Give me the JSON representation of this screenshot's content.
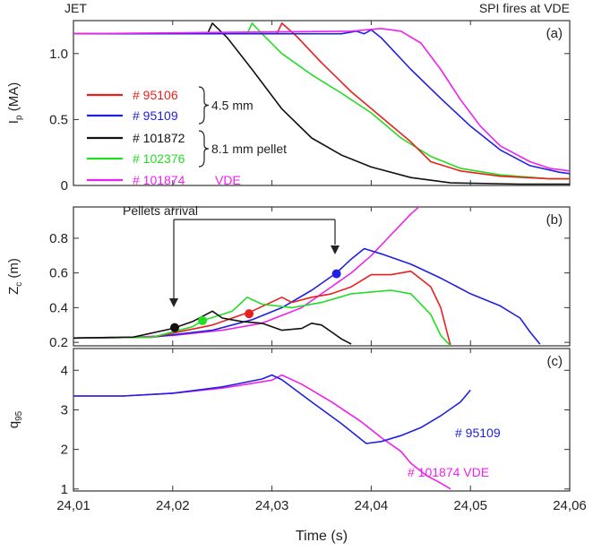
{
  "header": {
    "left": "JET",
    "right": "SPI fires at VDE"
  },
  "xaxis": {
    "label": "Time (s)",
    "min": 24.01,
    "max": 24.06,
    "ticks": [
      "24,01",
      "24,02",
      "24,03",
      "24,04",
      "24,05",
      "24,06"
    ],
    "tick_values": [
      24.01,
      24.02,
      24.03,
      24.04,
      24.05,
      24.06
    ]
  },
  "chart_data": [
    {
      "type": "line",
      "panel_label": "(a)",
      "ylabel_main": "I",
      "ylabel_sub": "p",
      "ylabel_unit": " (MA)",
      "ylim": [
        0,
        1.25
      ],
      "yticks": [
        {
          "v": 0,
          "t": "0"
        },
        {
          "v": 0.5,
          "t": "0.5"
        },
        {
          "v": 1.0,
          "t": "1.0"
        }
      ],
      "legend": [
        {
          "name": "# 95106",
          "color": "#e8211f"
        },
        {
          "name": "# 95109",
          "color": "#2020e0"
        },
        {
          "name": "# 101872",
          "color": "#111111"
        },
        {
          "name": "# 102376",
          "color": "#22dd22"
        },
        {
          "name": "# 101874",
          "color": "#ee22ee",
          "note": "VDE"
        }
      ],
      "legend_braces": [
        {
          "label": "4.5 mm",
          "series": [
            0,
            1
          ]
        },
        {
          "label": "8.1 mm pellet",
          "series": [
            2,
            3
          ]
        }
      ],
      "series": [
        {
          "name": "# 101872",
          "color": "#111111",
          "points": [
            [
              24.01,
              1.15
            ],
            [
              24.0235,
              1.15
            ],
            [
              24.024,
              1.23
            ],
            [
              24.0255,
              1.12
            ],
            [
              24.028,
              0.88
            ],
            [
              24.031,
              0.58
            ],
            [
              24.034,
              0.36
            ],
            [
              24.037,
              0.23
            ],
            [
              24.04,
              0.14
            ],
            [
              24.044,
              0.06
            ],
            [
              24.048,
              0.02
            ],
            [
              24.055,
              0.01
            ],
            [
              24.06,
              0.01
            ]
          ]
        },
        {
          "name": "# 102376",
          "color": "#22dd22",
          "points": [
            [
              24.01,
              1.15
            ],
            [
              24.0275,
              1.15
            ],
            [
              24.028,
              1.23
            ],
            [
              24.029,
              1.15
            ],
            [
              24.031,
              1.0
            ],
            [
              24.034,
              0.84
            ],
            [
              24.037,
              0.7
            ],
            [
              24.04,
              0.55
            ],
            [
              24.043,
              0.36
            ],
            [
              24.046,
              0.22
            ],
            [
              24.049,
              0.13
            ],
            [
              24.053,
              0.08
            ],
            [
              24.058,
              0.05
            ],
            [
              24.06,
              0.05
            ]
          ]
        },
        {
          "name": "# 95106",
          "color": "#e8211f",
          "points": [
            [
              24.01,
              1.15
            ],
            [
              24.0305,
              1.15
            ],
            [
              24.031,
              1.23
            ],
            [
              24.0325,
              1.13
            ],
            [
              24.035,
              0.93
            ],
            [
              24.038,
              0.71
            ],
            [
              24.041,
              0.52
            ],
            [
              24.044,
              0.33
            ],
            [
              24.046,
              0.18
            ],
            [
              24.049,
              0.11
            ],
            [
              24.053,
              0.07
            ],
            [
              24.058,
              0.05
            ],
            [
              24.06,
              0.05
            ]
          ]
        },
        {
          "name": "# 95109",
          "color": "#2020e0",
          "points": [
            [
              24.01,
              1.15
            ],
            [
              24.037,
              1.15
            ],
            [
              24.0385,
              1.17
            ],
            [
              24.0393,
              1.15
            ],
            [
              24.04,
              1.18
            ],
            [
              24.041,
              1.12
            ],
            [
              24.044,
              0.88
            ],
            [
              24.047,
              0.66
            ],
            [
              24.05,
              0.45
            ],
            [
              24.053,
              0.27
            ],
            [
              24.056,
              0.15
            ],
            [
              24.059,
              0.1
            ],
            [
              24.06,
              0.09
            ]
          ]
        },
        {
          "name": "# 101874",
          "color": "#ee22ee",
          "points": [
            [
              24.01,
              1.15
            ],
            [
              24.038,
              1.17
            ],
            [
              24.041,
              1.19
            ],
            [
              24.043,
              1.17
            ],
            [
              24.045,
              1.08
            ],
            [
              24.047,
              0.88
            ],
            [
              24.049,
              0.65
            ],
            [
              24.051,
              0.45
            ],
            [
              24.053,
              0.3
            ],
            [
              24.056,
              0.18
            ],
            [
              24.058,
              0.13
            ],
            [
              24.06,
              0.11
            ]
          ]
        }
      ]
    },
    {
      "type": "line",
      "panel_label": "(b)",
      "ylabel_main": "Z",
      "ylabel_sub": "c",
      "ylabel_unit": " (m)",
      "ylim": [
        0.18,
        0.98
      ],
      "yticks": [
        {
          "v": 0.2,
          "t": "0.2"
        },
        {
          "v": 0.4,
          "t": "0.4"
        },
        {
          "v": 0.6,
          "t": "0.6"
        },
        {
          "v": 0.8,
          "t": "0.8"
        }
      ],
      "annotation": "Pellets arrival",
      "markers": [
        {
          "x": 24.0202,
          "y": 0.285,
          "color": "#111111"
        },
        {
          "x": 24.023,
          "y": 0.325,
          "color": "#22dd22"
        },
        {
          "x": 24.0277,
          "y": 0.365,
          "color": "#e8211f"
        },
        {
          "x": 24.0365,
          "y": 0.595,
          "color": "#2020e0"
        }
      ],
      "series": [
        {
          "name": "# 101874",
          "color": "#ee22ee",
          "points": [
            [
              24.01,
              0.225
            ],
            [
              24.016,
              0.23
            ],
            [
              24.02,
              0.24
            ],
            [
              24.025,
              0.27
            ],
            [
              24.029,
              0.31
            ],
            [
              24.033,
              0.4
            ],
            [
              24.036,
              0.52
            ],
            [
              24.038,
              0.6
            ],
            [
              24.04,
              0.7
            ],
            [
              24.042,
              0.82
            ],
            [
              24.044,
              0.94
            ],
            [
              24.045,
              0.99
            ]
          ]
        },
        {
          "name": "# 95109",
          "color": "#2020e0",
          "points": [
            [
              24.01,
              0.225
            ],
            [
              24.018,
              0.23
            ],
            [
              24.024,
              0.27
            ],
            [
              24.028,
              0.33
            ],
            [
              24.031,
              0.4
            ],
            [
              24.034,
              0.5
            ],
            [
              24.0365,
              0.6
            ],
            [
              24.038,
              0.68
            ],
            [
              24.0393,
              0.74
            ],
            [
              24.041,
              0.71
            ],
            [
              24.044,
              0.65
            ],
            [
              24.047,
              0.57
            ],
            [
              24.05,
              0.48
            ],
            [
              24.053,
              0.41
            ],
            [
              24.055,
              0.34
            ],
            [
              24.056,
              0.26
            ],
            [
              24.057,
              0.19
            ]
          ]
        },
        {
          "name": "# 95106",
          "color": "#e8211f",
          "points": [
            [
              24.01,
              0.225
            ],
            [
              24.018,
              0.23
            ],
            [
              24.024,
              0.3
            ],
            [
              24.028,
              0.38
            ],
            [
              24.031,
              0.46
            ],
            [
              24.032,
              0.43
            ],
            [
              24.034,
              0.46
            ],
            [
              24.036,
              0.48
            ],
            [
              24.038,
              0.52
            ],
            [
              24.04,
              0.59
            ],
            [
              24.042,
              0.59
            ],
            [
              24.044,
              0.61
            ],
            [
              24.046,
              0.52
            ],
            [
              24.047,
              0.4
            ],
            [
              24.048,
              0.18
            ]
          ]
        },
        {
          "name": "# 102376",
          "color": "#22dd22",
          "points": [
            [
              24.01,
              0.225
            ],
            [
              24.018,
              0.23
            ],
            [
              24.022,
              0.29
            ],
            [
              24.023,
              0.325
            ],
            [
              24.026,
              0.38
            ],
            [
              24.0275,
              0.46
            ],
            [
              24.029,
              0.42
            ],
            [
              24.032,
              0.4
            ],
            [
              24.035,
              0.43
            ],
            [
              24.038,
              0.48
            ],
            [
              24.04,
              0.49
            ],
            [
              24.042,
              0.5
            ],
            [
              24.044,
              0.48
            ],
            [
              24.046,
              0.36
            ],
            [
              24.047,
              0.24
            ],
            [
              24.048,
              0.18
            ]
          ]
        },
        {
          "name": "# 101872",
          "color": "#111111",
          "points": [
            [
              24.01,
              0.225
            ],
            [
              24.016,
              0.23
            ],
            [
              24.02,
              0.28
            ],
            [
              24.022,
              0.32
            ],
            [
              24.024,
              0.38
            ],
            [
              24.025,
              0.34
            ],
            [
              24.027,
              0.32
            ],
            [
              24.029,
              0.31
            ],
            [
              24.031,
              0.27
            ],
            [
              24.033,
              0.28
            ],
            [
              24.034,
              0.31
            ],
            [
              24.035,
              0.3
            ],
            [
              24.036,
              0.26
            ],
            [
              24.037,
              0.22
            ],
            [
              24.038,
              0.19
            ]
          ]
        }
      ]
    },
    {
      "type": "line",
      "panel_label": "(c)",
      "ylabel_main": "q",
      "ylabel_sub": "95",
      "ylabel_unit": "",
      "ylim": [
        0.95,
        4.55
      ],
      "yticks": [
        {
          "v": 1,
          "t": "1"
        },
        {
          "v": 2,
          "t": "2"
        },
        {
          "v": 3,
          "t": "3"
        },
        {
          "v": 4,
          "t": "4"
        }
      ],
      "series_labels": [
        {
          "text": "# 95109",
          "color": "#2020e0"
        },
        {
          "text": "# 101874   VDE",
          "color": "#ee22ee"
        }
      ],
      "series": [
        {
          "name": "# 101874",
          "color": "#ee22ee",
          "points": [
            [
              24.01,
              3.35
            ],
            [
              24.015,
              3.35
            ],
            [
              24.02,
              3.42
            ],
            [
              24.025,
              3.55
            ],
            [
              24.03,
              3.75
            ],
            [
              24.031,
              3.88
            ],
            [
              24.033,
              3.65
            ],
            [
              24.036,
              3.2
            ],
            [
              24.039,
              2.7
            ],
            [
              24.041,
              2.3
            ],
            [
              24.043,
              1.95
            ],
            [
              24.044,
              1.65
            ],
            [
              24.0455,
              1.35
            ],
            [
              24.047,
              1.15
            ],
            [
              24.048,
              1.0
            ]
          ]
        },
        {
          "name": "# 95109",
          "color": "#2020e0",
          "points": [
            [
              24.01,
              3.35
            ],
            [
              24.015,
              3.35
            ],
            [
              24.02,
              3.42
            ],
            [
              24.025,
              3.58
            ],
            [
              24.029,
              3.78
            ],
            [
              24.03,
              3.88
            ],
            [
              24.031,
              3.76
            ],
            [
              24.034,
              3.2
            ],
            [
              24.037,
              2.65
            ],
            [
              24.0395,
              2.15
            ],
            [
              24.041,
              2.2
            ],
            [
              24.043,
              2.35
            ],
            [
              24.045,
              2.55
            ],
            [
              24.047,
              2.85
            ],
            [
              24.049,
              3.2
            ],
            [
              24.05,
              3.5
            ]
          ]
        }
      ]
    }
  ]
}
